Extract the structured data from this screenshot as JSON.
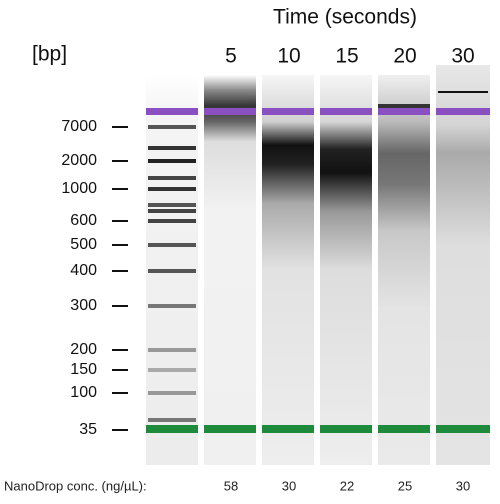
{
  "header": {
    "title": "Time (seconds)"
  },
  "ladder": {
    "unit": "[bp]",
    "sizes": [
      "7000",
      "2000",
      "1000",
      "600",
      "500",
      "400",
      "300",
      "200",
      "150",
      "100",
      "35"
    ]
  },
  "lanes": [
    {
      "label": "5",
      "concentration": "58"
    },
    {
      "label": "10",
      "concentration": "30"
    },
    {
      "label": "15",
      "concentration": "22"
    },
    {
      "label": "20",
      "concentration": "25"
    },
    {
      "label": "30",
      "concentration": "30"
    }
  ],
  "footer": {
    "label": "NanoDrop conc. (ng/µL):"
  }
}
